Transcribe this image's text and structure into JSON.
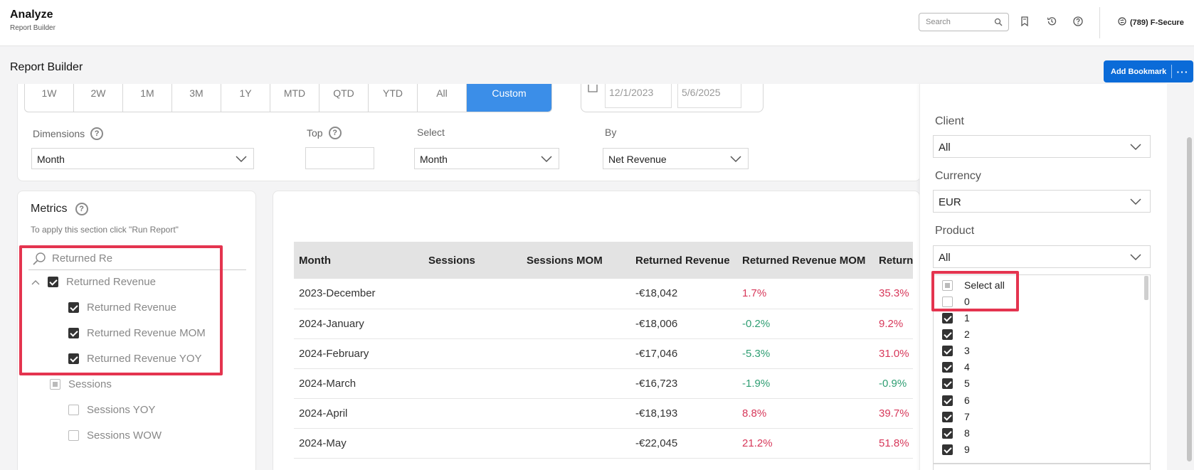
{
  "app": {
    "title": "Analyze",
    "subtitle": "Report Builder"
  },
  "topbar": {
    "search_placeholder": "Search",
    "icons": [
      "search-icon",
      "bookmark-icon",
      "history-icon",
      "help-icon"
    ],
    "account": "(789) F-Secure"
  },
  "page": {
    "title": "Report Builder",
    "bookmark_label": "Add Bookmark",
    "more_label": "···"
  },
  "date_range": {
    "options": [
      "1W",
      "2W",
      "1M",
      "3M",
      "1Y",
      "MTD",
      "QTD",
      "YTD",
      "All",
      "Custom"
    ],
    "selected": "Custom",
    "start": "12/1/2023",
    "end": "5/6/2025"
  },
  "settings": {
    "dimensions_label": "Dimensions",
    "dimensions_value": "Month",
    "top_label": "Top",
    "top_value": "",
    "select_label": "Select",
    "select_value": "Month",
    "by_label": "By",
    "by_value": "Net Revenue"
  },
  "metrics": {
    "title": "Metrics",
    "hint": "To apply this section click \"Run Report\"",
    "search_value": "Returned Re",
    "groups": [
      {
        "label": "Returned Revenue",
        "checked": true,
        "children": [
          {
            "label": "Returned Revenue",
            "checked": true
          },
          {
            "label": "Returned Revenue MOM",
            "checked": true
          },
          {
            "label": "Returned Revenue YOY",
            "checked": true
          }
        ]
      },
      {
        "label": "Sessions",
        "checked": "partial",
        "children": [
          {
            "label": "Sessions YOY",
            "checked": false
          },
          {
            "label": "Sessions WOW",
            "checked": false
          }
        ]
      }
    ]
  },
  "table": {
    "columns": [
      "Month",
      "Sessions",
      "Sessions MOM",
      "Returned Revenue",
      "Returned Revenue MOM",
      "Returned Revenue YOY"
    ],
    "rows": [
      [
        "2023-December",
        "",
        "",
        "-€18,042",
        "1.7%",
        "35.3%"
      ],
      [
        "2024-January",
        "",
        "",
        "-€18,006",
        "-0.2%",
        "9.2%"
      ],
      [
        "2024-February",
        "",
        "",
        "-€17,046",
        "-5.3%",
        "31.0%"
      ],
      [
        "2024-March",
        "",
        "",
        "-€16,723",
        "-1.9%",
        "-0.9%"
      ],
      [
        "2024-April",
        "",
        "",
        "-€18,193",
        "8.8%",
        "39.7%"
      ],
      [
        "2024-May",
        "",
        "",
        "-€22,045",
        "21.2%",
        "51.8%"
      ]
    ],
    "colors": {
      "increase": "#d7385a",
      "decrease": "#2f9e73"
    }
  },
  "filters": {
    "client_label": "Client",
    "client_value": "All",
    "currency_label": "Currency",
    "currency_value": "EUR",
    "product_label": "Product",
    "product_value": "All",
    "product_options": [
      {
        "label": "Select all",
        "state": "partial"
      },
      {
        "label": "0",
        "state": "unchecked"
      },
      {
        "label": "1",
        "state": "checked"
      },
      {
        "label": "2",
        "state": "checked"
      },
      {
        "label": "3",
        "state": "checked"
      },
      {
        "label": "4",
        "state": "checked"
      },
      {
        "label": "5",
        "state": "checked"
      },
      {
        "label": "6",
        "state": "checked"
      },
      {
        "label": "7",
        "state": "checked"
      },
      {
        "label": "8",
        "state": "checked"
      },
      {
        "label": "9",
        "state": "checked"
      }
    ]
  },
  "accent_color": "#0b6bd8",
  "highlight_color": "#e4344f"
}
